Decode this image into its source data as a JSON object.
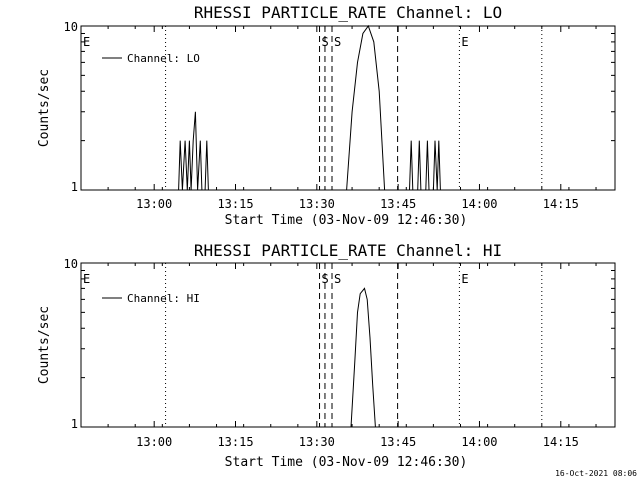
{
  "footer": {
    "timestamp": "16-Oct-2021 08:06"
  },
  "chart_data": [
    {
      "type": "line",
      "title": "RHESSI PARTICLE_RATE Channel: LO",
      "xlabel": "Start Time (03-Nov-09 12:46:30)",
      "ylabel": "Counts/sec",
      "y_scale": "log",
      "ylim": [
        1,
        10
      ],
      "yticks": [
        "1",
        "10"
      ],
      "xticks": [
        "13:00",
        "13:15",
        "13:30",
        "13:45",
        "14:00",
        "14:15"
      ],
      "xtick_minutes": [
        13.5,
        28.5,
        43.5,
        58.5,
        73.5,
        88.5
      ],
      "xlim_minutes": [
        0,
        98.5
      ],
      "legend": {
        "label": "Channel: LO",
        "position": "top-left"
      },
      "markers": [
        {
          "label": "E",
          "minute": 0,
          "style": "none"
        },
        {
          "label": "",
          "minute": 15.6,
          "style": "dotted"
        },
        {
          "label": "S",
          "minute": 44.0,
          "style": "dashed"
        },
        {
          "label": "",
          "minute": 45.0,
          "style": "dashed"
        },
        {
          "label": "S",
          "minute": 46.3,
          "style": "dashed"
        },
        {
          "label": "",
          "minute": 58.4,
          "style": "dashed"
        },
        {
          "label": "E",
          "minute": 69.8,
          "style": "dotted"
        },
        {
          "label": "",
          "minute": 85.0,
          "style": "dotted"
        }
      ],
      "series": [
        {
          "name": "Channel: LO",
          "points": [
            [
              18.0,
              1
            ],
            [
              18.3,
              2
            ],
            [
              18.7,
              1
            ],
            [
              19.2,
              2
            ],
            [
              19.6,
              1
            ],
            [
              20.0,
              2
            ],
            [
              20.3,
              1
            ],
            [
              20.7,
              2
            ],
            [
              21.1,
              3
            ],
            [
              21.5,
              1
            ],
            [
              22.0,
              2
            ],
            [
              22.3,
              1
            ],
            [
              22.9,
              1
            ],
            [
              23.2,
              2
            ],
            [
              23.5,
              1
            ],
            [
              49.0,
              1
            ],
            [
              50.0,
              3
            ],
            [
              51.0,
              6
            ],
            [
              52.0,
              9
            ],
            [
              53.0,
              10
            ],
            [
              54.0,
              8
            ],
            [
              55.0,
              4
            ],
            [
              55.5,
              2
            ],
            [
              56.0,
              1
            ],
            [
              60.6,
              1
            ],
            [
              60.9,
              2
            ],
            [
              61.2,
              1
            ],
            [
              62.1,
              1
            ],
            [
              62.4,
              2
            ],
            [
              62.7,
              1
            ],
            [
              63.6,
              1
            ],
            [
              63.9,
              2
            ],
            [
              64.2,
              1
            ],
            [
              65.0,
              1
            ],
            [
              65.3,
              2
            ],
            [
              65.7,
              1
            ],
            [
              66.0,
              2
            ],
            [
              66.3,
              1
            ]
          ]
        }
      ]
    },
    {
      "type": "line",
      "title": "RHESSI PARTICLE_RATE Channel: HI",
      "xlabel": "Start Time (03-Nov-09 12:46:30)",
      "ylabel": "Counts/sec",
      "y_scale": "log",
      "ylim": [
        1,
        10
      ],
      "yticks": [
        "1",
        "10"
      ],
      "xticks": [
        "13:00",
        "13:15",
        "13:30",
        "13:45",
        "14:00",
        "14:15"
      ],
      "xtick_minutes": [
        13.5,
        28.5,
        43.5,
        58.5,
        73.5,
        88.5
      ],
      "xlim_minutes": [
        0,
        98.5
      ],
      "legend": {
        "label": "Channel: HI",
        "position": "top-left"
      },
      "markers": [
        {
          "label": "E",
          "minute": 0,
          "style": "none"
        },
        {
          "label": "",
          "minute": 15.6,
          "style": "dotted"
        },
        {
          "label": "S",
          "minute": 44.0,
          "style": "dashed"
        },
        {
          "label": "",
          "minute": 45.0,
          "style": "dashed"
        },
        {
          "label": "S",
          "minute": 46.3,
          "style": "dashed"
        },
        {
          "label": "",
          "minute": 58.4,
          "style": "dashed"
        },
        {
          "label": "E",
          "minute": 69.8,
          "style": "dotted"
        },
        {
          "label": "",
          "minute": 85.0,
          "style": "dotted"
        }
      ],
      "series": [
        {
          "name": "Channel: HI",
          "points": [
            [
              49.8,
              1
            ],
            [
              50.5,
              2.5
            ],
            [
              51.0,
              5
            ],
            [
              51.5,
              6.5
            ],
            [
              52.3,
              7
            ],
            [
              52.8,
              6
            ],
            [
              53.3,
              3.5
            ],
            [
              53.8,
              1.8
            ],
            [
              54.3,
              1
            ]
          ]
        }
      ]
    }
  ]
}
